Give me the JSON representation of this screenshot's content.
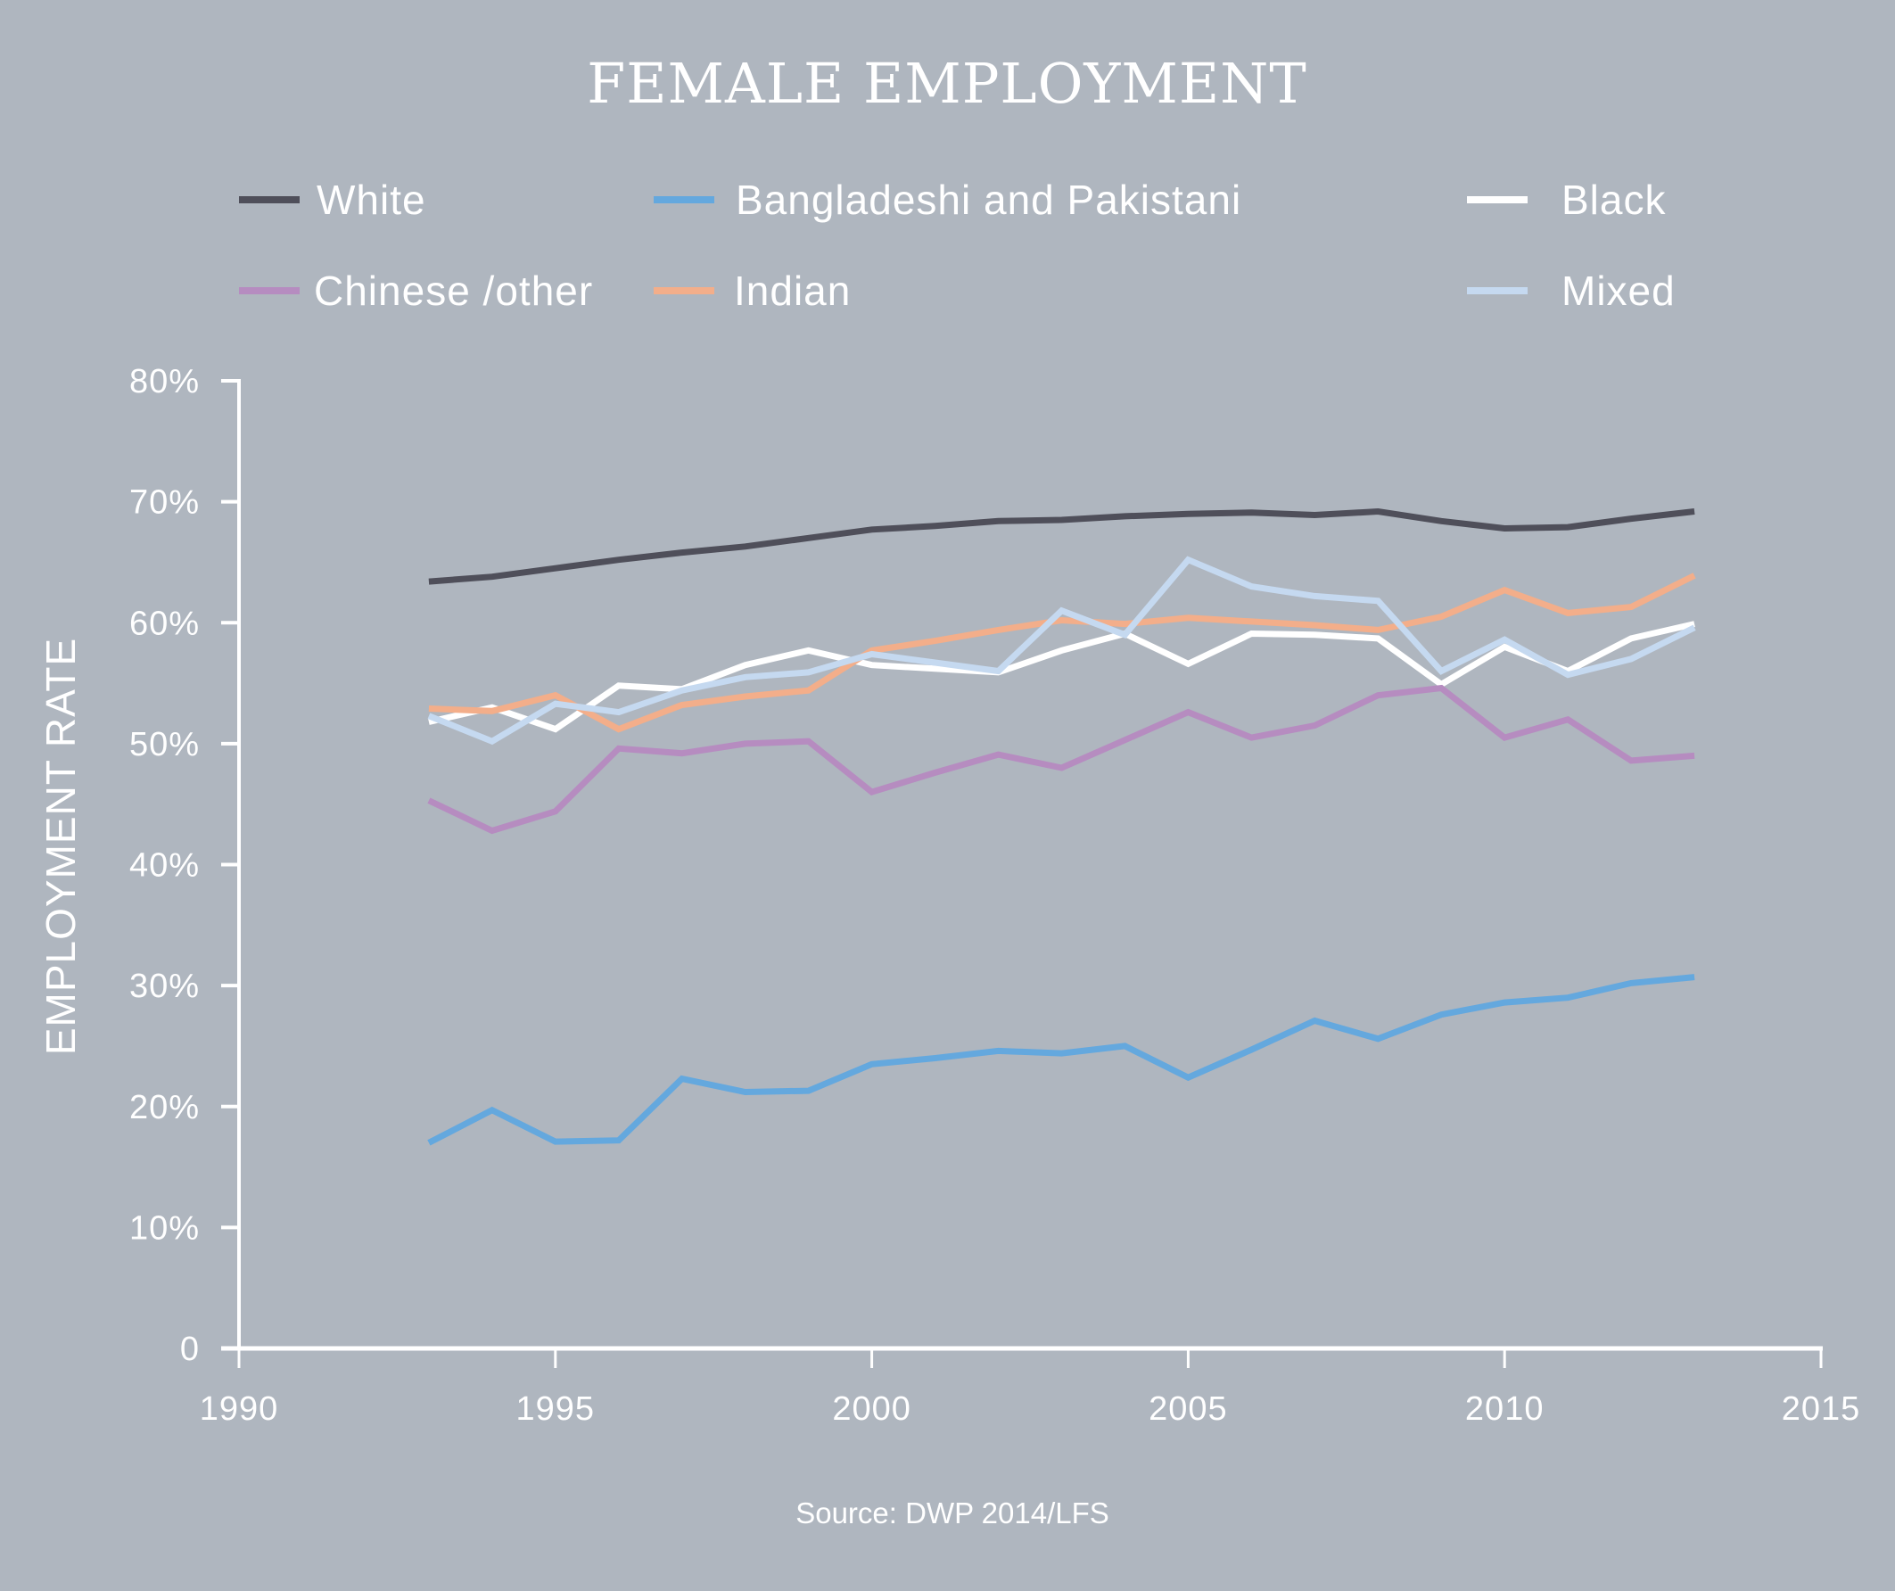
{
  "chart_data": {
    "type": "line",
    "title": "FEMALE EMPLOYMENT",
    "xlabel": "",
    "ylabel": "EMPLOYMENT RATE",
    "source": "Source: DWP 2014/LFS",
    "xlim": [
      1990,
      2015
    ],
    "ylim": [
      0,
      80
    ],
    "grid": false,
    "legend_position": "top",
    "x_ticks": [
      1990,
      1995,
      2000,
      2005,
      2010,
      2015
    ],
    "x_tick_labels": [
      "1990",
      "1995",
      "2000",
      "2005",
      "2010",
      "2015"
    ],
    "y_ticks": [
      0,
      10,
      20,
      30,
      40,
      50,
      60,
      70,
      80
    ],
    "y_tick_labels": [
      "0",
      "10%",
      "20%",
      "30%",
      "40%",
      "50%",
      "60%",
      "70%",
      "80%"
    ],
    "x": [
      1993,
      1994,
      1995,
      1996,
      1997,
      1998,
      1999,
      2000,
      2001,
      2002,
      2003,
      2004,
      2005,
      2006,
      2007,
      2008,
      2009,
      2010,
      2011,
      2012,
      2013
    ],
    "series": [
      {
        "name": "White",
        "color": "#4F4F5A",
        "values": [
          63.4,
          63.8,
          64.5,
          65.2,
          65.8,
          66.3,
          67.0,
          67.7,
          68.0,
          68.4,
          68.5,
          68.8,
          69.0,
          69.1,
          68.9,
          69.2,
          68.4,
          67.8,
          67.9,
          68.6,
          69.2
        ]
      },
      {
        "name": "Bangladeshi and Pakistani",
        "color": "#64A8DE",
        "values": [
          17.0,
          19.7,
          17.1,
          17.2,
          22.3,
          21.2,
          21.3,
          23.5,
          24.0,
          24.6,
          24.4,
          25.0,
          22.4,
          24.7,
          27.1,
          25.6,
          27.6,
          28.6,
          29.0,
          30.2,
          30.7
        ]
      },
      {
        "name": "Black",
        "color": "#FFFFFF",
        "values": [
          51.8,
          53.0,
          51.2,
          54.8,
          54.5,
          56.5,
          57.7,
          56.5,
          56.2,
          55.9,
          57.7,
          59.1,
          56.6,
          59.1,
          59.0,
          58.7,
          54.9,
          58.0,
          56.0,
          58.7,
          59.9
        ]
      },
      {
        "name": "Chinese /other",
        "color": "#B68CC0",
        "values": [
          45.3,
          42.8,
          44.4,
          49.6,
          49.2,
          50.0,
          50.2,
          46.0,
          47.6,
          49.1,
          48.0,
          50.3,
          52.6,
          50.5,
          51.5,
          54.0,
          54.6,
          50.5,
          52.0,
          48.6,
          49.0
        ]
      },
      {
        "name": "Indian",
        "color": "#F3AE8A",
        "values": [
          52.9,
          52.7,
          54.0,
          51.2,
          53.2,
          53.9,
          54.4,
          57.7,
          58.5,
          59.4,
          60.2,
          59.9,
          60.4,
          60.1,
          59.8,
          59.4,
          60.5,
          62.7,
          60.8,
          61.3,
          63.9
        ]
      },
      {
        "name": "Mixed",
        "color": "#C5D9F0",
        "values": [
          52.3,
          50.2,
          53.3,
          52.6,
          54.4,
          55.5,
          55.9,
          57.4,
          56.7,
          56.0,
          61.0,
          59.0,
          65.2,
          63.0,
          62.2,
          61.8,
          56.0,
          58.6,
          55.7,
          57.0,
          59.6
        ]
      }
    ]
  },
  "colors": {
    "background": "#AFB6BF",
    "axis": "#FFFFFF",
    "text": "#FFFFFF"
  }
}
